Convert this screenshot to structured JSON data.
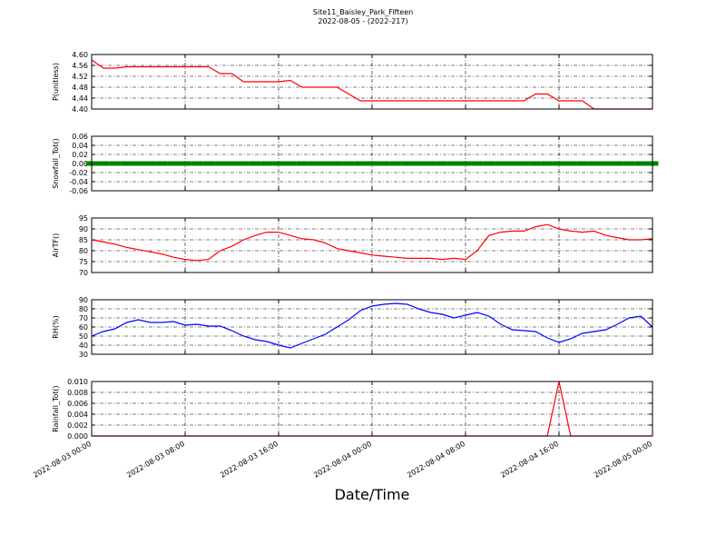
{
  "chart_data": [
    {
      "type": "line",
      "title": "Site11_Baisley_Park_Fifteen",
      "subtitle": "2022-08-05 - (2022-217)",
      "ylabel": "P(unitless)",
      "color": "#ff0000",
      "grid": true,
      "x": [
        "2022-08-03 00:00",
        "2022-08-03 01:00",
        "2022-08-03 02:00",
        "2022-08-03 03:00",
        "2022-08-03 04:00",
        "2022-08-03 05:00",
        "2022-08-03 06:00",
        "2022-08-03 07:00",
        "2022-08-03 08:00",
        "2022-08-03 09:00",
        "2022-08-03 10:00",
        "2022-08-03 11:00",
        "2022-08-03 12:00",
        "2022-08-03 13:00",
        "2022-08-03 14:00",
        "2022-08-03 15:00",
        "2022-08-03 16:00",
        "2022-08-03 17:00",
        "2022-08-03 18:00",
        "2022-08-03 19:00",
        "2022-08-03 20:00",
        "2022-08-03 21:00",
        "2022-08-03 22:00",
        "2022-08-03 23:00",
        "2022-08-04 00:00",
        "2022-08-04 01:00",
        "2022-08-04 02:00",
        "2022-08-04 03:00",
        "2022-08-04 04:00",
        "2022-08-04 05:00",
        "2022-08-04 06:00",
        "2022-08-04 07:00",
        "2022-08-04 08:00",
        "2022-08-04 09:00",
        "2022-08-04 10:00",
        "2022-08-04 11:00",
        "2022-08-04 12:00",
        "2022-08-04 13:00",
        "2022-08-04 14:00",
        "2022-08-04 15:00",
        "2022-08-04 16:00",
        "2022-08-04 17:00",
        "2022-08-04 18:00",
        "2022-08-04 19:00",
        "2022-08-04 20:00",
        "2022-08-04 21:00",
        "2022-08-04 22:00",
        "2022-08-04 23:00",
        "2022-08-05 00:00"
      ],
      "values": [
        4.58,
        4.55,
        4.55,
        4.555,
        4.555,
        4.555,
        4.555,
        4.555,
        4.555,
        4.555,
        4.555,
        4.53,
        4.53,
        4.5,
        4.5,
        4.5,
        4.5,
        4.505,
        4.48,
        4.48,
        4.48,
        4.48,
        4.455,
        4.43,
        4.43,
        4.43,
        4.43,
        4.43,
        4.43,
        4.43,
        4.43,
        4.43,
        4.43,
        4.43,
        4.43,
        4.43,
        4.43,
        4.43,
        4.455,
        4.455,
        4.43,
        4.43,
        4.43,
        4.4,
        4.4,
        4.4,
        4.4,
        4.4,
        4.4
      ],
      "ylim": [
        4.4,
        4.6
      ],
      "yticks": [
        {
          "value": 4.4,
          "label": "4.40"
        },
        4.44,
        4.48,
        4.52,
        4.56,
        {
          "value": 4.6,
          "label": "4.60"
        }
      ],
      "xticks": [
        "2022-08-03 00:00",
        "2022-08-03 08:00",
        "2022-08-03 16:00",
        "2022-08-04 00:00",
        "2022-08-04 08:00",
        "2022-08-04 16:00",
        "2022-08-05 00:00"
      ]
    },
    {
      "type": "scatter",
      "ylabel": "Snowfall_Tot()",
      "color": "#008000",
      "grid": true,
      "x": [
        "2022-08-03 00:00",
        "2022-08-03 01:00",
        "2022-08-03 02:00",
        "2022-08-03 03:00",
        "2022-08-03 04:00",
        "2022-08-03 05:00",
        "2022-08-03 06:00",
        "2022-08-03 07:00",
        "2022-08-03 08:00",
        "2022-08-03 09:00",
        "2022-08-03 10:00",
        "2022-08-03 11:00",
        "2022-08-03 12:00",
        "2022-08-03 13:00",
        "2022-08-03 14:00",
        "2022-08-03 15:00",
        "2022-08-03 16:00",
        "2022-08-03 17:00",
        "2022-08-03 18:00",
        "2022-08-03 19:00",
        "2022-08-03 20:00",
        "2022-08-03 21:00",
        "2022-08-03 22:00",
        "2022-08-03 23:00",
        "2022-08-04 00:00",
        "2022-08-04 01:00",
        "2022-08-04 02:00",
        "2022-08-04 03:00",
        "2022-08-04 04:00",
        "2022-08-04 05:00",
        "2022-08-04 06:00",
        "2022-08-04 07:00",
        "2022-08-04 08:00",
        "2022-08-04 09:00",
        "2022-08-04 10:00",
        "2022-08-04 11:00",
        "2022-08-04 12:00",
        "2022-08-04 13:00",
        "2022-08-04 14:00",
        "2022-08-04 15:00",
        "2022-08-04 16:00",
        "2022-08-04 17:00",
        "2022-08-04 18:00",
        "2022-08-04 19:00",
        "2022-08-04 20:00",
        "2022-08-04 21:00",
        "2022-08-04 22:00",
        "2022-08-04 23:00",
        "2022-08-05 00:00"
      ],
      "values": [
        0,
        0,
        0,
        0,
        0,
        0,
        0,
        0,
        0,
        0,
        0,
        0,
        0,
        0,
        0,
        0,
        0,
        0,
        0,
        0,
        0,
        0,
        0,
        0,
        0,
        0,
        0,
        0,
        0,
        0,
        0,
        0,
        0,
        0,
        0,
        0,
        0,
        0,
        0,
        0,
        0,
        0,
        0,
        0,
        0,
        0,
        0,
        0,
        0
      ],
      "ylim": [
        -0.06,
        0.06
      ],
      "yticks": [
        -0.06,
        -0.04,
        -0.02,
        {
          "value": 0,
          "label": "0.00"
        },
        0.02,
        0.04,
        0.06
      ],
      "xticks": [
        "2022-08-03 00:00",
        "2022-08-03 08:00",
        "2022-08-03 16:00",
        "2022-08-04 00:00",
        "2022-08-04 08:00",
        "2022-08-04 16:00",
        "2022-08-05 00:00"
      ]
    },
    {
      "type": "line",
      "ylabel": "AirTF()",
      "color": "#ff0000",
      "grid": true,
      "x": [
        "2022-08-03 00:00",
        "2022-08-03 01:00",
        "2022-08-03 02:00",
        "2022-08-03 03:00",
        "2022-08-03 04:00",
        "2022-08-03 05:00",
        "2022-08-03 06:00",
        "2022-08-03 07:00",
        "2022-08-03 08:00",
        "2022-08-03 09:00",
        "2022-08-03 10:00",
        "2022-08-03 11:00",
        "2022-08-03 12:00",
        "2022-08-03 13:00",
        "2022-08-03 14:00",
        "2022-08-03 15:00",
        "2022-08-03 16:00",
        "2022-08-03 17:00",
        "2022-08-03 18:00",
        "2022-08-03 19:00",
        "2022-08-03 20:00",
        "2022-08-03 21:00",
        "2022-08-03 22:00",
        "2022-08-03 23:00",
        "2022-08-04 00:00",
        "2022-08-04 01:00",
        "2022-08-04 02:00",
        "2022-08-04 03:00",
        "2022-08-04 04:00",
        "2022-08-04 05:00",
        "2022-08-04 06:00",
        "2022-08-04 07:00",
        "2022-08-04 08:00",
        "2022-08-04 09:00",
        "2022-08-04 10:00",
        "2022-08-04 11:00",
        "2022-08-04 12:00",
        "2022-08-04 13:00",
        "2022-08-04 14:00",
        "2022-08-04 15:00",
        "2022-08-04 16:00",
        "2022-08-04 17:00",
        "2022-08-04 18:00",
        "2022-08-04 19:00",
        "2022-08-04 20:00",
        "2022-08-04 21:00",
        "2022-08-04 22:00",
        "2022-08-04 23:00",
        "2022-08-05 00:00"
      ],
      "values": [
        85,
        84,
        83,
        81.5,
        80.5,
        79.5,
        78.5,
        77,
        76,
        75.5,
        76,
        80,
        82,
        85,
        87,
        88.5,
        88.5,
        87,
        85.5,
        85,
        83.5,
        81,
        80,
        79,
        78,
        77.5,
        77,
        76.5,
        76.5,
        76.5,
        76,
        76.5,
        76,
        80,
        87,
        88.5,
        89,
        89,
        91,
        92,
        90,
        89,
        88.5,
        89,
        87,
        86,
        85,
        85,
        85.5
      ],
      "ylim": [
        70,
        95
      ],
      "yticks": [
        70,
        75,
        80,
        85,
        90,
        95
      ],
      "xticks": [
        "2022-08-03 00:00",
        "2022-08-03 08:00",
        "2022-08-03 16:00",
        "2022-08-04 00:00",
        "2022-08-04 08:00",
        "2022-08-04 16:00",
        "2022-08-05 00:00"
      ]
    },
    {
      "type": "line",
      "ylabel": "RH(%)",
      "color": "#0000ff",
      "grid": true,
      "x": [
        "2022-08-03 00:00",
        "2022-08-03 01:00",
        "2022-08-03 02:00",
        "2022-08-03 03:00",
        "2022-08-03 04:00",
        "2022-08-03 05:00",
        "2022-08-03 06:00",
        "2022-08-03 07:00",
        "2022-08-03 08:00",
        "2022-08-03 09:00",
        "2022-08-03 10:00",
        "2022-08-03 11:00",
        "2022-08-03 12:00",
        "2022-08-03 13:00",
        "2022-08-03 14:00",
        "2022-08-03 15:00",
        "2022-08-03 16:00",
        "2022-08-03 17:00",
        "2022-08-03 18:00",
        "2022-08-03 19:00",
        "2022-08-03 20:00",
        "2022-08-03 21:00",
        "2022-08-03 22:00",
        "2022-08-03 23:00",
        "2022-08-04 00:00",
        "2022-08-04 01:00",
        "2022-08-04 02:00",
        "2022-08-04 03:00",
        "2022-08-04 04:00",
        "2022-08-04 05:00",
        "2022-08-04 06:00",
        "2022-08-04 07:00",
        "2022-08-04 08:00",
        "2022-08-04 09:00",
        "2022-08-04 10:00",
        "2022-08-04 11:00",
        "2022-08-04 12:00",
        "2022-08-04 13:00",
        "2022-08-04 14:00",
        "2022-08-04 15:00",
        "2022-08-04 16:00",
        "2022-08-04 17:00",
        "2022-08-04 18:00",
        "2022-08-04 19:00",
        "2022-08-04 20:00",
        "2022-08-04 21:00",
        "2022-08-04 22:00",
        "2022-08-04 23:00",
        "2022-08-05 00:00"
      ],
      "values": [
        50,
        55,
        58,
        65,
        68,
        65,
        65,
        66,
        62,
        63,
        61,
        61,
        56,
        50,
        46,
        44,
        40,
        37,
        42,
        47,
        52,
        60,
        68,
        78,
        83,
        85,
        86,
        85,
        80,
        76,
        74,
        70,
        73,
        76,
        72,
        63,
        57,
        56,
        55,
        48,
        43,
        47,
        53,
        55,
        57,
        63,
        70,
        72,
        60
      ],
      "ylim": [
        30,
        90
      ],
      "yticks": [
        30,
        40,
        50,
        60,
        70,
        80,
        90
      ],
      "xticks": [
        "2022-08-03 00:00",
        "2022-08-03 08:00",
        "2022-08-03 16:00",
        "2022-08-04 00:00",
        "2022-08-04 08:00",
        "2022-08-04 16:00",
        "2022-08-05 00:00"
      ]
    },
    {
      "type": "line",
      "ylabel": "Rainfall_Tot()",
      "xlabel": "Date/Time",
      "color": "#ff0000",
      "grid": true,
      "show_xtick_labels": true,
      "x": [
        "2022-08-03 00:00",
        "2022-08-03 01:00",
        "2022-08-03 02:00",
        "2022-08-03 03:00",
        "2022-08-03 04:00",
        "2022-08-03 05:00",
        "2022-08-03 06:00",
        "2022-08-03 07:00",
        "2022-08-03 08:00",
        "2022-08-03 09:00",
        "2022-08-03 10:00",
        "2022-08-03 11:00",
        "2022-08-03 12:00",
        "2022-08-03 13:00",
        "2022-08-03 14:00",
        "2022-08-03 15:00",
        "2022-08-03 16:00",
        "2022-08-03 17:00",
        "2022-08-03 18:00",
        "2022-08-03 19:00",
        "2022-08-03 20:00",
        "2022-08-03 21:00",
        "2022-08-03 22:00",
        "2022-08-03 23:00",
        "2022-08-04 00:00",
        "2022-08-04 01:00",
        "2022-08-04 02:00",
        "2022-08-04 03:00",
        "2022-08-04 04:00",
        "2022-08-04 05:00",
        "2022-08-04 06:00",
        "2022-08-04 07:00",
        "2022-08-04 08:00",
        "2022-08-04 09:00",
        "2022-08-04 10:00",
        "2022-08-04 11:00",
        "2022-08-04 12:00",
        "2022-08-04 13:00",
        "2022-08-04 14:00",
        "2022-08-04 15:00",
        "2022-08-04 16:00",
        "2022-08-04 17:00",
        "2022-08-04 18:00",
        "2022-08-04 19:00",
        "2022-08-04 20:00",
        "2022-08-04 21:00",
        "2022-08-04 22:00",
        "2022-08-04 23:00",
        "2022-08-05 00:00"
      ],
      "values": [
        0,
        0,
        0,
        0,
        0,
        0,
        0,
        0,
        0,
        0,
        0,
        0,
        0,
        0,
        0,
        0,
        0,
        0,
        0,
        0,
        0,
        0,
        0,
        0,
        0,
        0,
        0,
        0,
        0,
        0,
        0,
        0,
        0,
        0,
        0,
        0,
        0,
        0,
        0,
        0,
        0.01,
        0,
        0,
        0,
        0,
        0,
        0,
        0,
        0
      ],
      "ylim": [
        0,
        0.01
      ],
      "yticks": [
        {
          "value": 0,
          "label": "0.000"
        },
        0.002,
        0.004,
        0.006,
        0.008,
        {
          "value": 0.01,
          "label": "0.010"
        }
      ],
      "xticks": [
        "2022-08-03 00:00",
        "2022-08-03 08:00",
        "2022-08-03 16:00",
        "2022-08-04 00:00",
        "2022-08-04 08:00",
        "2022-08-04 16:00",
        "2022-08-05 00:00"
      ]
    }
  ]
}
